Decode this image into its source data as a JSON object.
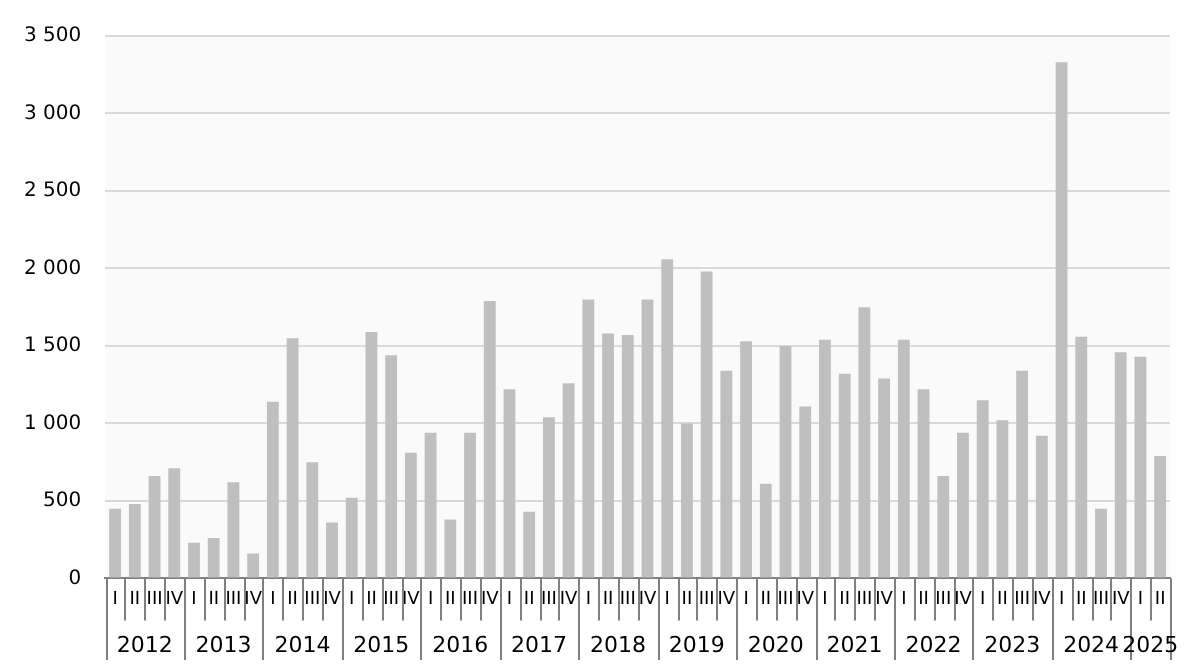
{
  "chart_data": {
    "type": "bar",
    "categories": [
      "I",
      "II",
      "III",
      "IV",
      "I",
      "II",
      "III",
      "IV",
      "I",
      "II",
      "III",
      "IV",
      "I",
      "II",
      "III",
      "IV",
      "I",
      "II",
      "III",
      "IV",
      "I",
      "II",
      "III",
      "IV",
      "I",
      "II",
      "III",
      "IV",
      "I",
      "II",
      "III",
      "IV",
      "I",
      "II",
      "III",
      "IV",
      "I",
      "II",
      "III",
      "IV",
      "I",
      "II",
      "III",
      "IV",
      "I",
      "II",
      "III",
      "IV",
      "I",
      "II",
      "III",
      "IV",
      "I",
      "II"
    ],
    "values": [
      450,
      480,
      660,
      710,
      230,
      260,
      620,
      160,
      1140,
      1550,
      750,
      360,
      520,
      1590,
      1440,
      810,
      940,
      380,
      940,
      1790,
      1220,
      430,
      1040,
      1260,
      1800,
      1580,
      1570,
      1800,
      2060,
      1000,
      1980,
      1340,
      1530,
      610,
      1500,
      1110,
      1540,
      1320,
      1750,
      1290,
      1540,
      1220,
      660,
      940,
      1150,
      1020,
      1340,
      920,
      3330,
      1560,
      450,
      1460,
      1430,
      790
    ],
    "color": "#bfbfbf",
    "annotations": [
      "2012",
      "2013",
      "2014",
      "2015",
      "2016",
      "2017",
      "2018",
      "2019",
      "2020",
      "2021",
      "2022",
      "2023",
      "2024",
      "2025"
    ],
    "ylim": [
      0,
      3500
    ],
    "yticks": [
      0,
      {
        "value": 500,
        "label": "500"
      },
      {
        "value": 1000,
        "label": "1 000"
      },
      {
        "value": 1500,
        "label": "1 500"
      },
      {
        "value": 2000,
        "label": "2 000"
      },
      {
        "value": 2500,
        "label": "2 500"
      },
      {
        "value": 3000,
        "label": "3 000"
      },
      {
        "value": 3500,
        "label": "3 500"
      }
    ],
    "grid": "y",
    "legend": false
  }
}
